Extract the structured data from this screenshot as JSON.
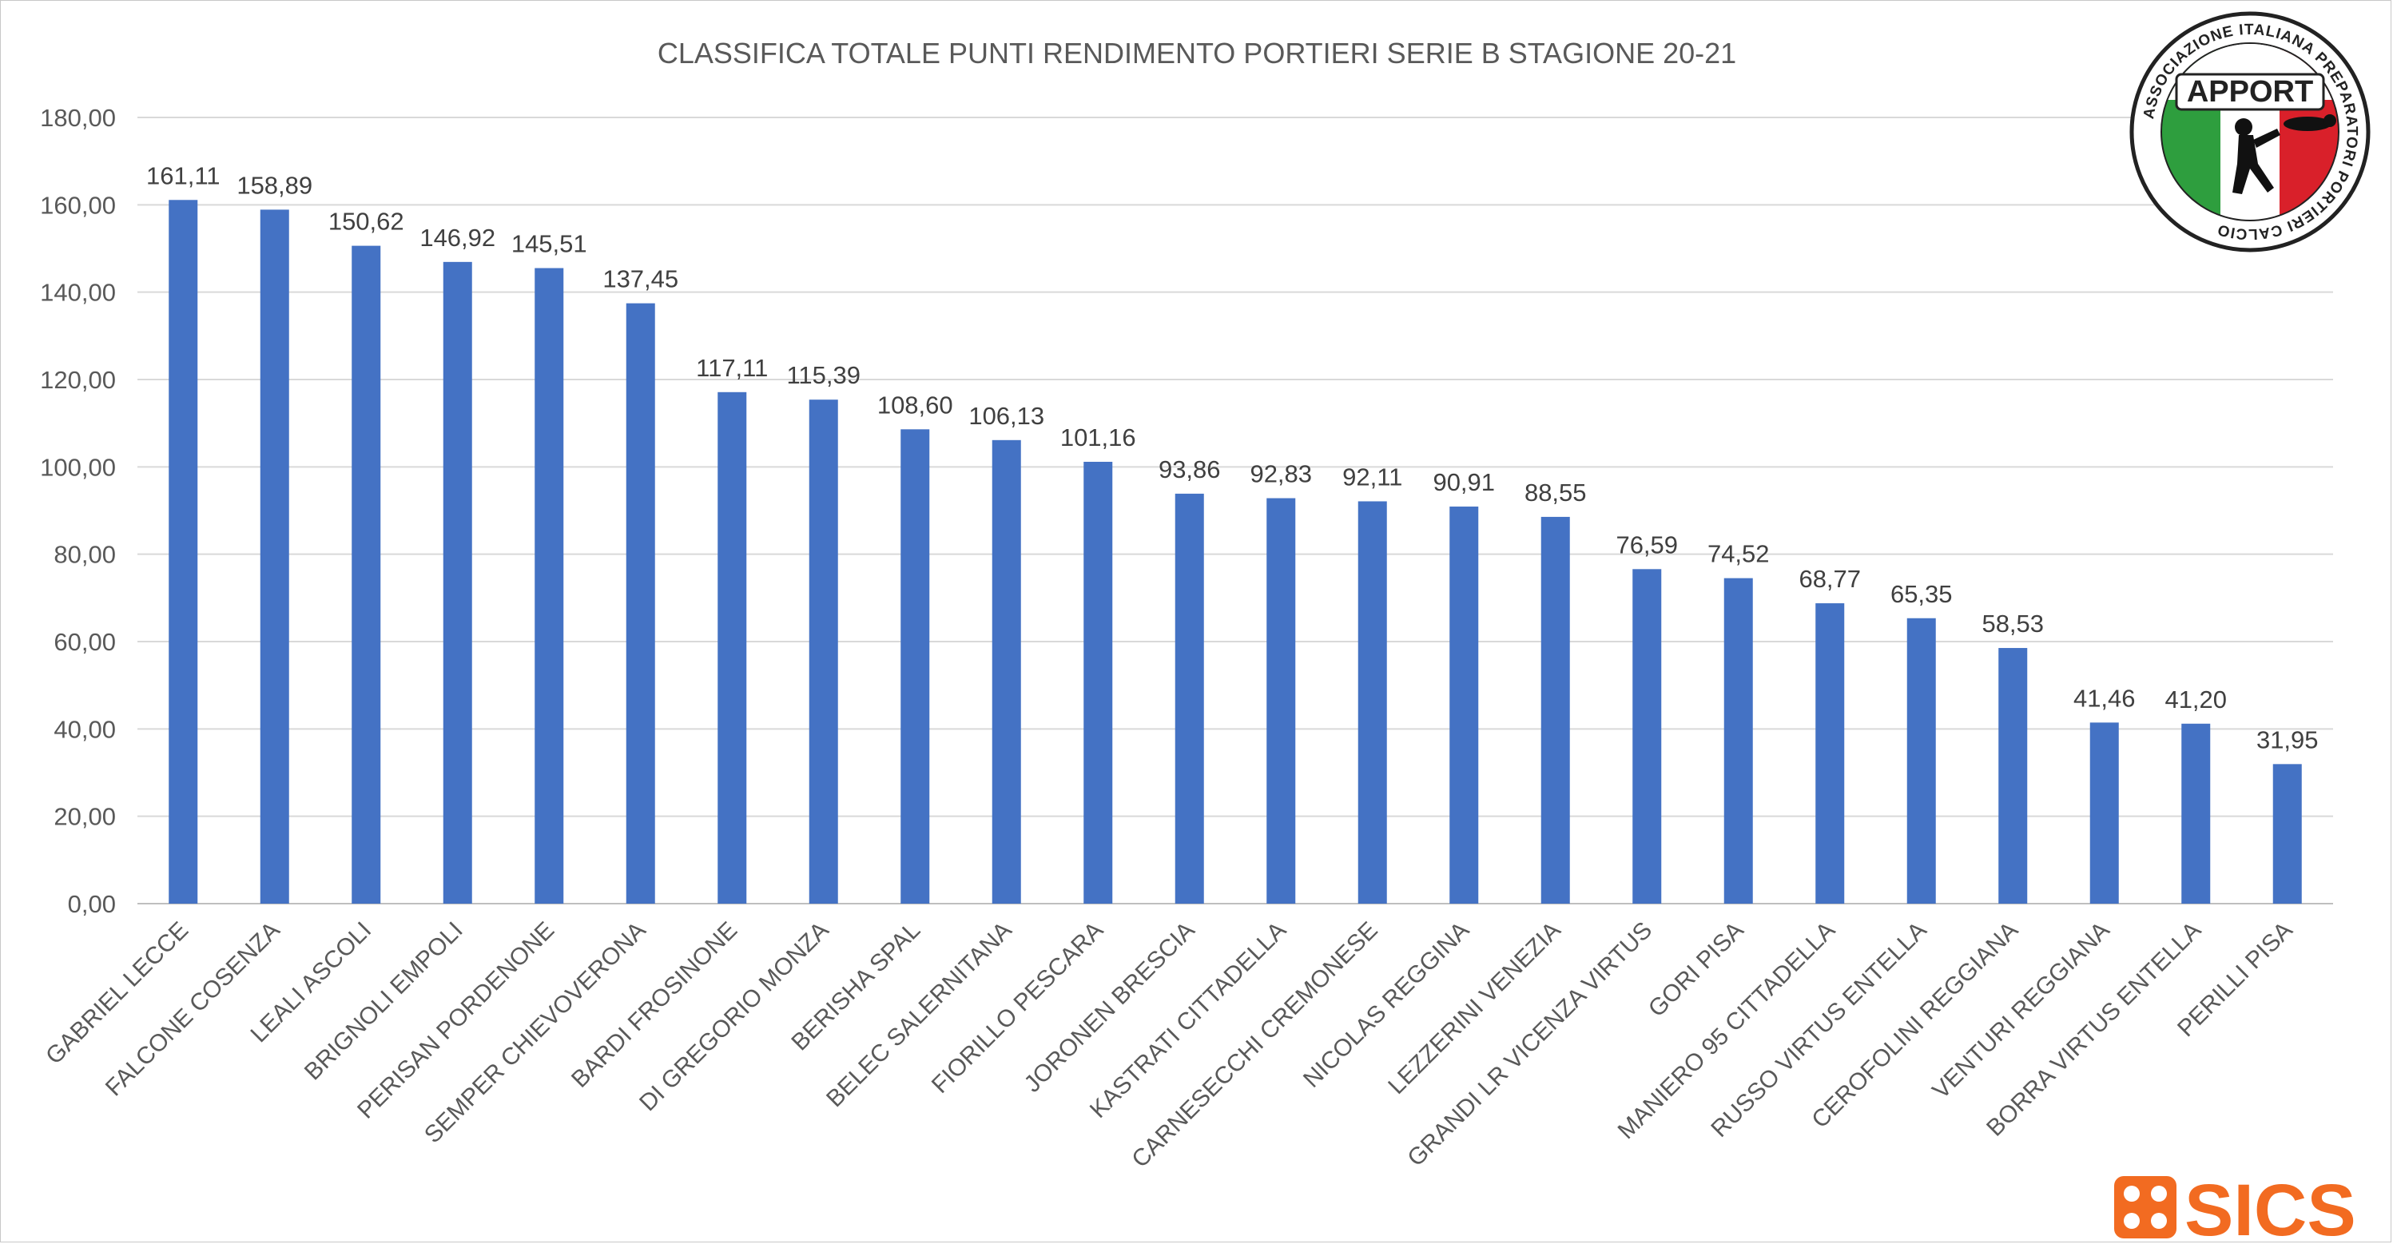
{
  "chart_data": {
    "type": "bar",
    "title": "CLASSIFICA TOTALE PUNTI RENDIMENTO PORTIERI SERIE B STAGIONE 20-21",
    "xlabel": "",
    "ylabel": "",
    "ylim": [
      0,
      180
    ],
    "y_ticks": [
      0,
      20,
      40,
      60,
      80,
      100,
      120,
      140,
      160,
      180
    ],
    "y_tick_labels": [
      "0,00",
      "20,00",
      "40,00",
      "60,00",
      "80,00",
      "100,00",
      "120,00",
      "140,00",
      "160,00",
      "180,00"
    ],
    "grid": true,
    "legend": "none",
    "bar_color": "#4472c4",
    "categories": [
      "GABRIEL LECCE",
      "FALCONE COSENZA",
      "LEALI ASCOLI",
      "BRIGNOLI EMPOLI",
      "PERISAN PORDENONE",
      "SEMPER CHIEVOVERONA",
      "BARDI FROSINONE",
      "DI GREGORIO MONZA",
      "BERISHA SPAL",
      "BELEC SALERNITANA",
      "FIORILLO PESCARA",
      "JORONEN BRESCIA",
      "KASTRATI CITTADELLA",
      "CARNESECCHI CREMONESE",
      "NICOLAS REGGINA",
      "LEZZERINI VENEZIA",
      "GRANDI LR VICENZA VIRTUS",
      "GORI PISA",
      "MANIERO 95 CITTADELLA",
      "RUSSO VIRTUS ENTELLA",
      "CEROFOLINI REGGIANA",
      "VENTURI REGGIANA",
      "BORRA VIRTUS ENTELLA",
      "PERILLI PISA"
    ],
    "values": [
      161.11,
      158.89,
      150.62,
      146.92,
      145.51,
      137.45,
      117.11,
      115.39,
      108.6,
      106.13,
      101.16,
      93.86,
      92.83,
      92.11,
      90.91,
      88.55,
      76.59,
      74.52,
      68.77,
      65.35,
      58.53,
      41.46,
      41.2,
      31.95
    ],
    "data_labels": [
      "161,11",
      "158,89",
      "150,62",
      "146,92",
      "145,51",
      "137,45",
      "117,11",
      "115,39",
      "108,60",
      "106,13",
      "101,16",
      "93,86",
      "92,83",
      "92,11",
      "90,91",
      "88,55",
      "76,59",
      "74,52",
      "68,77",
      "65,35",
      "58,53",
      "41,46",
      "41,20",
      "31,95"
    ]
  },
  "logos": {
    "apport": {
      "name": "APPORT",
      "ring_text": "ASSOCIAZIONE ITALIANA PREPARATORI PORTIERI CALCIO",
      "colors": [
        "#2e9e3e",
        "#ffffff",
        "#d9202a"
      ]
    },
    "sics": {
      "name": "SICS",
      "color": "#f26b21"
    }
  }
}
